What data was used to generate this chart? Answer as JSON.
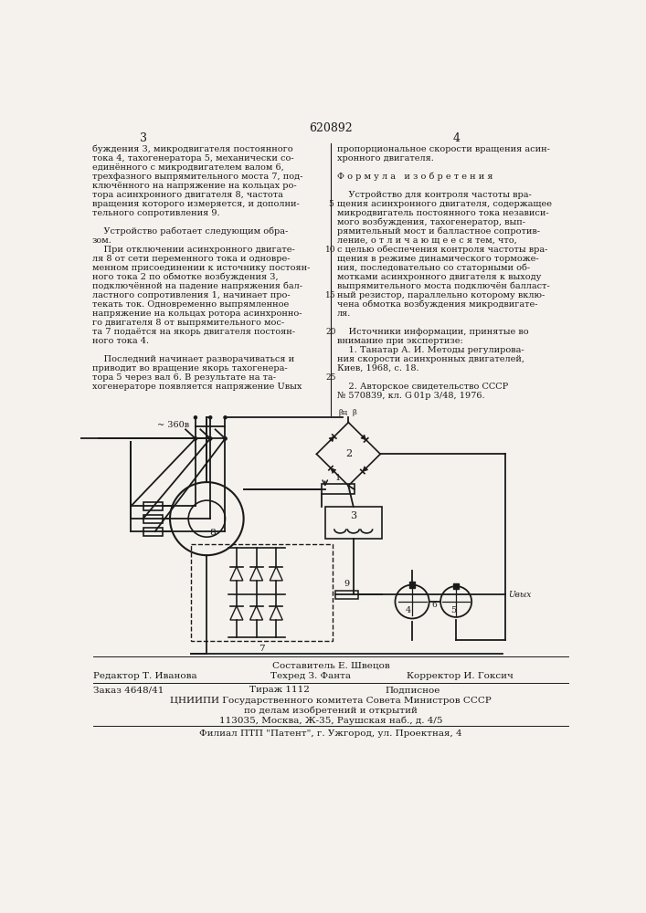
{
  "patent_number": "620892",
  "bg_color": "#f5f2ee",
  "text_color": "#1a1a1a",
  "left_lines": [
    "буждения 3, микродвигателя постоянного",
    "тока 4, тахогенератора 5, механически со-",
    "единённого с микродвигателем валом 6,",
    "трехфазного выпрямительного моста 7, под-",
    "ключённого на напряжение на кольцах ро-",
    "тора асинхронного двигателя 8, частота",
    "вращения которого измеряется, и дополни-",
    "тельного сопротивления 9.",
    "",
    "    Устройство работает следующим обра-",
    "зом.",
    "    При отключении асинхронного двигате-",
    "ля 8 от сети переменного тока и одновре-",
    "менном присоединении к источнику постоян-",
    "ного тока 2 по обмотке возбуждения 3,",
    "подключённой на падение напряжения бал-",
    "ластного сопротивления 1, начинает про-",
    "текать ток. Одновременно выпрямленное",
    "напряжение на кольцах ротора асинхронно-",
    "го двигателя 8 от выпрямительного мос-",
    "та 7 подаётся на якорь двигателя постоян-",
    "ного тока 4.",
    "",
    "    Последний начинает разворачиваться и",
    "приводит во вращение якорь тахогенера-",
    "тора 5 через вал 6. В результате на та-",
    "хогенераторе появляется напряжение Uвых"
  ],
  "right_lines": [
    "пропорциональное скорости вращения асин-",
    "хронного двигателя.",
    "",
    "Ф о р м у л а   и з о б р е т е н и я",
    "",
    "    Устройство для контроля частоты вра-",
    "щения асинхронного двигателя, содержащее",
    "микродвигатель постоянного тока независи-",
    "мого возбуждения, тахогенератор, вып-",
    "рямительный мост и балластное сопротив-",
    "ление, о т л и ч а ю щ е е с я тем, что,",
    "с целью обеспечения контроля частоты вра-",
    "щения в режиме динамического торможе-",
    "ния, последовательно со статорными об-",
    "мотками асинхронного двигателя к выходу",
    "выпрямительного моста подключён балласт-",
    "ный резистор, параллельно которому вклю-",
    "чена обмотка возбуждения микродвигате-",
    "ля.",
    "",
    "    Источники информации, принятые во",
    "внимание при экспертизе:",
    "    1. Танатар А. И. Методы регулирова-",
    "ния скорости асинхронных двигателей,",
    "Киев, 1968, с. 18.",
    "",
    "    2. Авторское свидетельство СССР",
    "№ 570839, кл. G 01р 3/48, 1976."
  ],
  "footer_sestavitel": "Составитель Е. Швецов",
  "footer_redaktor": "Редактор Т. Иванова",
  "footer_tehred": "Техред З. Фанта",
  "footer_korrektor": "Корректор И. Гоксич",
  "footer_zakaz": "Заказ 4648/41",
  "footer_tirazh": "Тираж 1112",
  "footer_podpisnoe": "Подписное",
  "footer_cniip": "ЦНИИПИ Государственного комитета Совета Министров СССР",
  "footer_dela": "по делам изобретений и открытий",
  "footer_address": "113035, Москва, Ж-35, Раушская наб., д. 4/5",
  "footer_filial": "Филиал ПТП \"Патент\", г. Ужгород, ул. Проектная, 4"
}
